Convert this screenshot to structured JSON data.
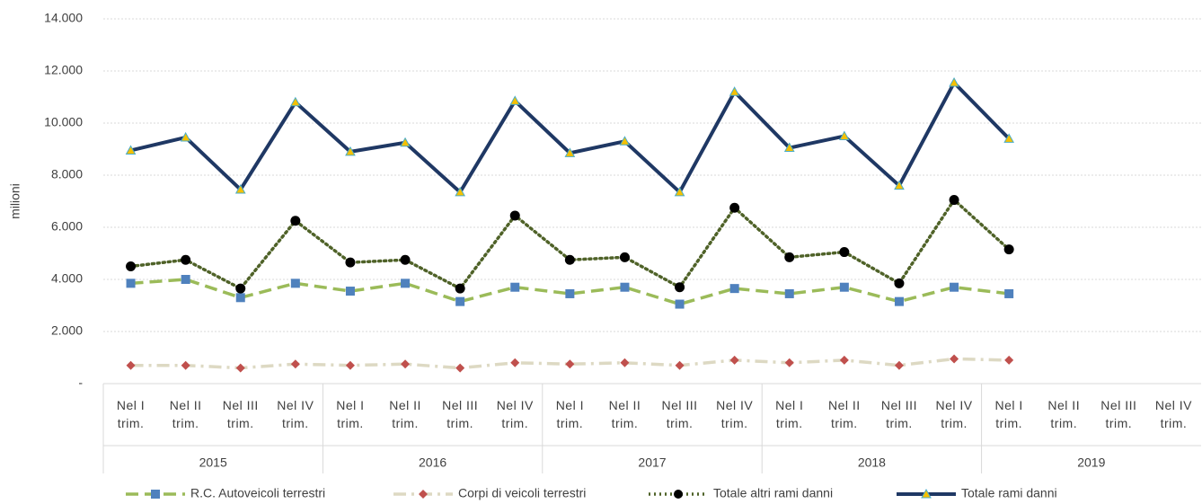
{
  "chart_data": {
    "type": "line",
    "y_label": "milioni",
    "categories": [
      "Nel I trim.",
      "Nel II trim.",
      "Nel III trim.",
      "Nel IV trim.",
      "Nel I trim.",
      "Nel II trim.",
      "Nel III trim.",
      "Nel IV trim.",
      "Nel I trim.",
      "Nel II trim.",
      "Nel III trim.",
      "Nel IV trim.",
      "Nel I trim.",
      "Nel II trim.",
      "Nel III trim.",
      "Nel IV trim.",
      "Nel I trim.",
      "Nel II trim.",
      "Nel III trim.",
      "Nel IV trim."
    ],
    "year_groups": [
      "2015",
      "2016",
      "2017",
      "2018",
      "2019"
    ],
    "ylim": [
      0,
      14000
    ],
    "yticks": [
      {
        "value": 0,
        "label": "-"
      },
      {
        "value": 2000,
        "label": "2.000"
      },
      {
        "value": 4000,
        "label": "4.000"
      },
      {
        "value": 6000,
        "label": "6.000"
      },
      {
        "value": 8000,
        "label": "8.000"
      },
      {
        "value": 10000,
        "label": "10.000"
      },
      {
        "value": 12000,
        "label": "12.000"
      },
      {
        "value": 14000,
        "label": "14.000"
      }
    ],
    "grid": true,
    "legend": "bottom",
    "series": [
      {
        "name": "R.C. Autoveicoli terrestri",
        "color": "#9bbb59",
        "marker_color": "#4f81bd",
        "marker": "square",
        "line_style": "dashed",
        "values": [
          3850,
          4000,
          3300,
          3850,
          3550,
          3850,
          3150,
          3700,
          3450,
          3700,
          3050,
          3650,
          3450,
          3700,
          3150,
          3700,
          3450,
          null,
          null,
          null
        ]
      },
      {
        "name": "Corpi di veicoli terrestri",
        "color": "#ddd9c3",
        "marker_color": "#c0504d",
        "marker": "diamond",
        "line_style": "dashdot",
        "values": [
          700,
          700,
          600,
          750,
          700,
          750,
          600,
          800,
          750,
          800,
          700,
          900,
          800,
          900,
          700,
          950,
          900,
          null,
          null,
          null
        ]
      },
      {
        "name": "Totale altri rami danni",
        "color": "#4f6228",
        "marker_color": "#000000",
        "marker": "circle",
        "line_style": "dotted",
        "values": [
          4500,
          4750,
          3650,
          6250,
          4650,
          4750,
          3650,
          6450,
          4750,
          4850,
          3700,
          6750,
          4850,
          5050,
          3850,
          7050,
          5150,
          null,
          null,
          null
        ]
      },
      {
        "name": "Totale rami danni",
        "color": "#1f3864",
        "marker_color": "#f5c000",
        "marker": "triangle",
        "line_style": "solid",
        "values": [
          8950,
          9450,
          7450,
          10800,
          8900,
          9250,
          7350,
          10850,
          8850,
          9300,
          7350,
          11200,
          9050,
          9500,
          7600,
          11550,
          9400,
          null,
          null,
          null
        ]
      }
    ]
  }
}
